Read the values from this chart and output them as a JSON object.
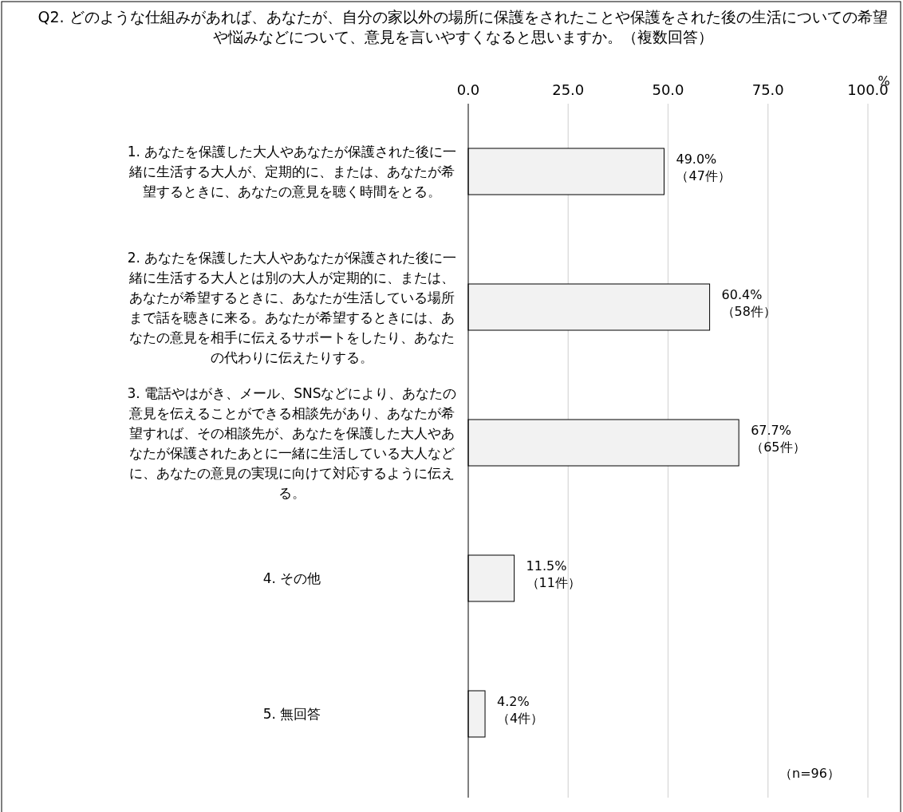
{
  "chart_data": {
    "type": "bar",
    "orientation": "horizontal",
    "title": "Q2. どのような仕組みがあれば、あなたが、自分の家以外の場所に保護をされたことや保護をされた後の生活についての希望や悩みなどについて、意見を言いやすくなると思いますか。（複数回答）",
    "xlabel": "%",
    "categories": [
      "1. あなたを保護した大人やあなたが保護された後に一緒に生活する大人が、定期的に、または、あなたが希望するときに、あなたの意見を聴く時間をとる。",
      "2. あなたを保護した大人やあなたが保護された後に一緒に生活する大人とは別の大人が定期的に、または、あなたが希望するときに、あなたが生活している場所まで話を聴きに来る。あなたが希望するときには、あなたの意見を相手に伝えるサポートをしたり、あなたの代わりに伝えたりする。",
      "3. 電話やはがき、メール、SNSなどにより、あなたの意見を伝えることができる相談先があり、あなたが希望すれば、その相談先が、あなたを保護した大人やあなたが保護されたあとに一緒に生活している大人などに、あなたの意見の実現に向けて対応するように伝える。",
      "4. その他",
      "5. 無回答"
    ],
    "values": [
      49.0,
      60.4,
      67.7,
      11.5,
      4.2
    ],
    "value_labels": [
      "49.0%\n（47件）",
      "60.4%\n（58件）",
      "67.7%\n（65件）",
      "11.5%\n（11件）",
      "4.2%\n（4件）"
    ],
    "color": "#f2f2f2",
    "xlim": [
      0,
      100
    ],
    "xticks": [
      {
        "value": 0,
        "label": "0.0"
      },
      {
        "value": 25,
        "label": "25.0"
      },
      {
        "value": 50,
        "label": "50.0"
      },
      {
        "value": 75,
        "label": "75.0"
      },
      {
        "value": 100,
        "label": "100.0"
      }
    ],
    "grid": "x",
    "annotations": [
      "（n=96）"
    ]
  }
}
